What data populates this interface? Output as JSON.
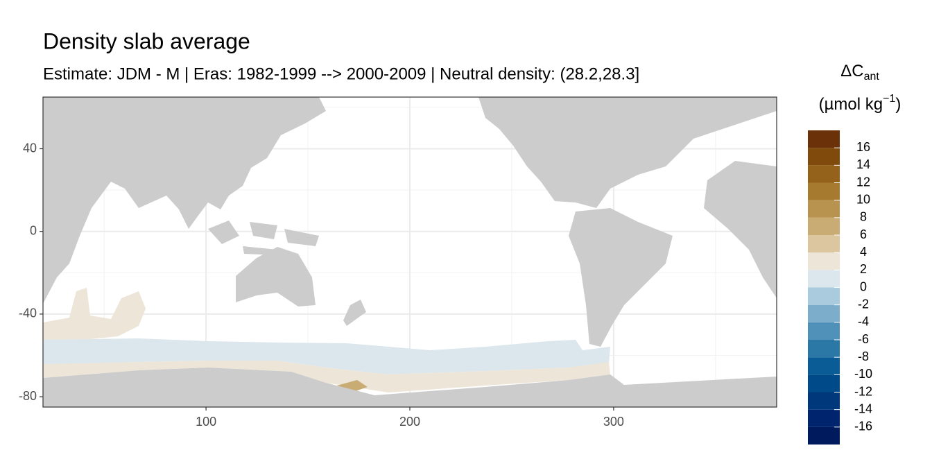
{
  "chart_data": {
    "type": "map",
    "title": "Density slab average",
    "subtitle": "Estimate: JDM - M | Eras: 1982-1999 --> 2000-2009 | Neutral density: (28.2,28.3]",
    "legend_title": {
      "main": "ΔC",
      "sub": "ant"
    },
    "legend_unit": {
      "main": "(µmol kg",
      "sup": "−1",
      "end": ")"
    },
    "xlim": [
      20,
      380
    ],
    "ylim": [
      -85,
      65
    ],
    "xticks": [
      100,
      200,
      300
    ],
    "yticks": [
      -80,
      -40,
      0,
      40
    ],
    "xminor": [
      50,
      150,
      250,
      350
    ],
    "yminor": [
      -60,
      -20,
      20,
      60
    ],
    "grid": true,
    "colorbar": {
      "breaks": [
        -18,
        -16,
        -14,
        -12,
        -10,
        -8,
        -6,
        -4,
        -2,
        0,
        2,
        4,
        6,
        8,
        10,
        12,
        14,
        16,
        18
      ],
      "colors": [
        "#001a5e",
        "#00256e",
        "#00387c",
        "#004a89",
        "#0a5c96",
        "#2b77a6",
        "#5091b9",
        "#7caecb",
        "#aacbde",
        "#dce7ed",
        "#ede5d8",
        "#dcc69f",
        "#c9ac74",
        "#b8924f",
        "#a77b2f",
        "#94621a",
        "#7f4a0c",
        "#6b320a",
        "#5a1605"
      ],
      "ticks": [
        -16,
        -14,
        -12,
        -10,
        -8,
        -6,
        -4,
        -2,
        0,
        2,
        4,
        6,
        8,
        10,
        12,
        14,
        16
      ]
    }
  }
}
